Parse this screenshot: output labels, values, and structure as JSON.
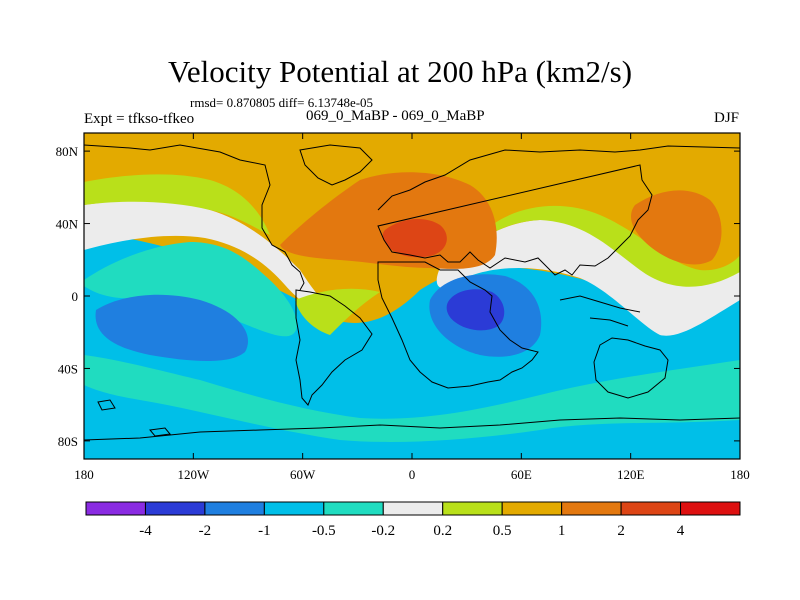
{
  "chart_data": {
    "type": "contour-map",
    "title": "Velocity Potential at 200 hPa (km2/s)",
    "stats": "rmsd= 0.870805 diff= 6.13748e-05",
    "left_label": "Expt = tfkso-tfkeo",
    "center_label": "069_0_MaBP - 069_0_MaBP",
    "right_label": "DJF",
    "x_ticks": [
      "180",
      "120W",
      "60W",
      "0",
      "60E",
      "120E",
      "180"
    ],
    "x_tick_values": [
      -180,
      -120,
      -60,
      0,
      60,
      120,
      180
    ],
    "y_ticks": [
      "80N",
      "40N",
      "0",
      "40S",
      "80S"
    ],
    "y_tick_values": [
      80,
      40,
      0,
      -40,
      -80
    ],
    "xlim": [
      -180,
      180
    ],
    "ylim": [
      -90,
      90
    ],
    "colorbar": {
      "labels": [
        "-4",
        "-2",
        "-1",
        "-0.5",
        "-0.2",
        "0.2",
        "0.5",
        "1",
        "2",
        "4"
      ],
      "levels": [
        -4,
        -2,
        -1,
        -0.5,
        -0.2,
        0.2,
        0.5,
        1,
        2,
        4
      ],
      "colors": [
        "#8a2be2",
        "#2b3bd6",
        "#1f7fe0",
        "#00bfe8",
        "#20dcc0",
        "#ececec",
        "#b9e01a",
        "#e3aa00",
        "#e3780f",
        "#dd4515",
        "#dd1010"
      ]
    },
    "regions": [
      {
        "name": "tropical-pacific-min",
        "lon": -130,
        "lat": -10,
        "level": -1
      },
      {
        "name": "africa-min",
        "lon": 35,
        "lat": -8,
        "level": -2
      },
      {
        "name": "asia-max",
        "lon": 5,
        "lat": 30,
        "level": 2
      },
      {
        "name": "west-pacific-max",
        "lon": 145,
        "lat": 35,
        "level": 1
      },
      {
        "name": "north-atlantic-max",
        "lon": -30,
        "lat": 40,
        "level": 1
      }
    ]
  }
}
